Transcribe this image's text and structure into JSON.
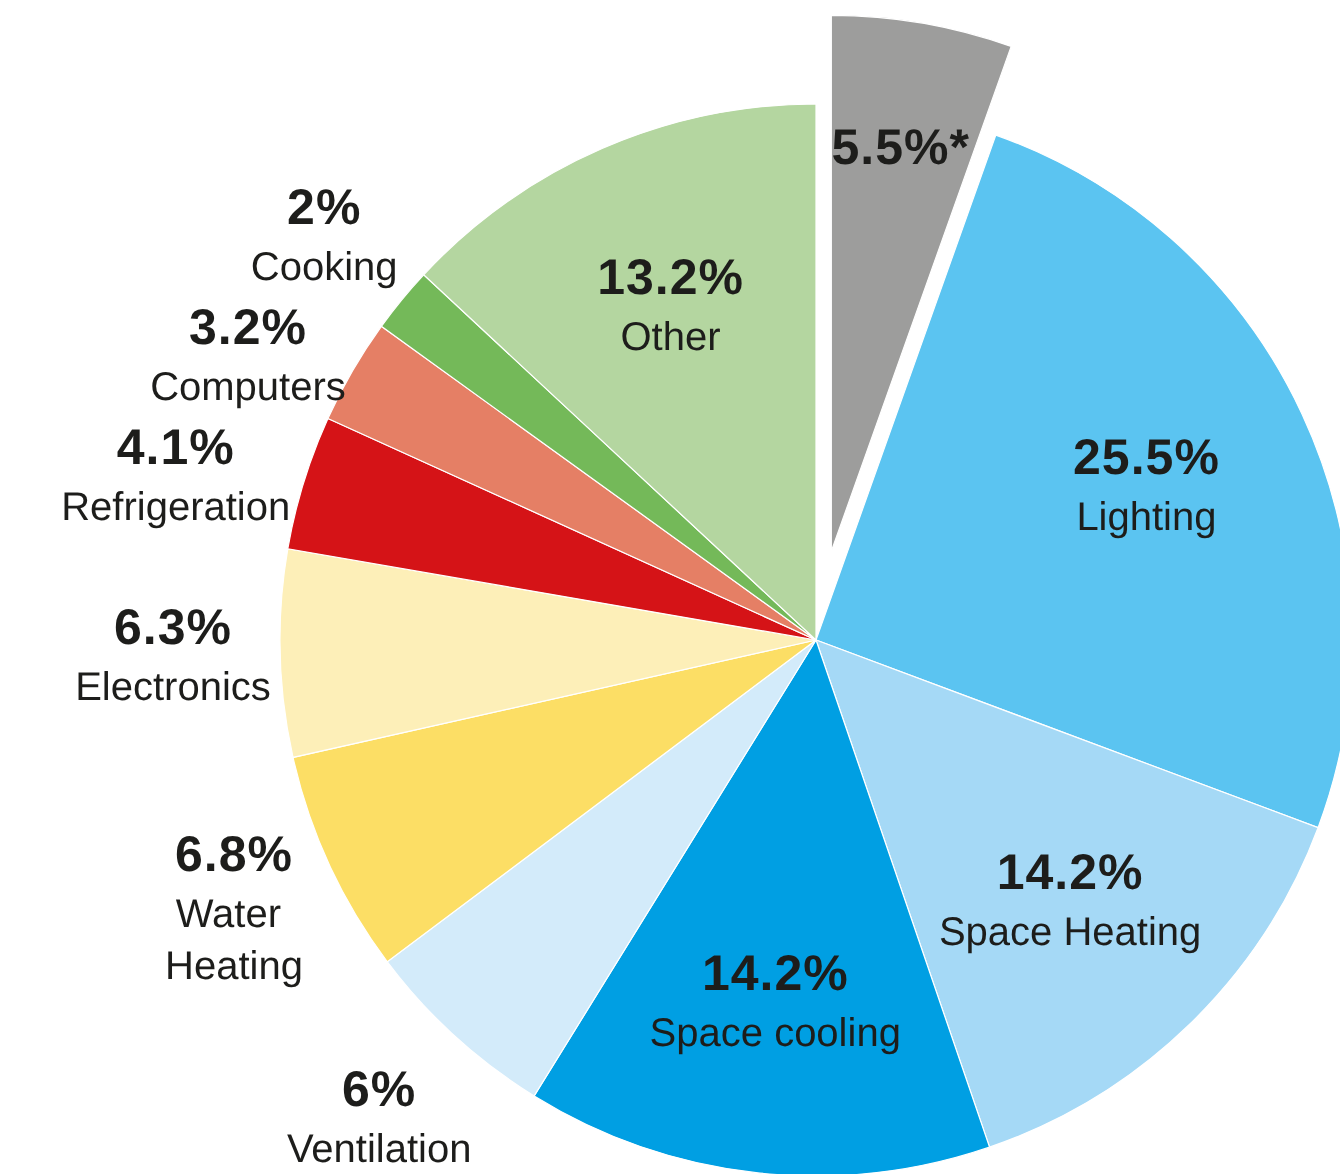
{
  "chart_data": {
    "type": "pie",
    "categories": [
      null,
      "Lighting",
      "Space Heating",
      "Space cooling",
      "Ventilation",
      "Water Heating",
      "Electronics",
      "Refrigeration",
      "Computers",
      "Cooking",
      "Other"
    ],
    "values": [
      5.5,
      25.5,
      14.2,
      14.2,
      6,
      6.8,
      6.3,
      4.1,
      3.2,
      2,
      13.2
    ],
    "colors": [
      "#9d9d9c",
      "#5bc4f1",
      "#a5d9f6",
      "#009fe3",
      "#d3ebfa",
      "#fcde65",
      "#fdefb8",
      "#d51317",
      "#e57f65",
      "#74b959",
      "#b4d6a0"
    ],
    "value_labels": [
      "5.5%*",
      "25.5%",
      "14.2%",
      "14.2%",
      "6%",
      "6.8%",
      "6.3%",
      "4.1%",
      "3.2%",
      "2%",
      "13.2%"
    ]
  }
}
